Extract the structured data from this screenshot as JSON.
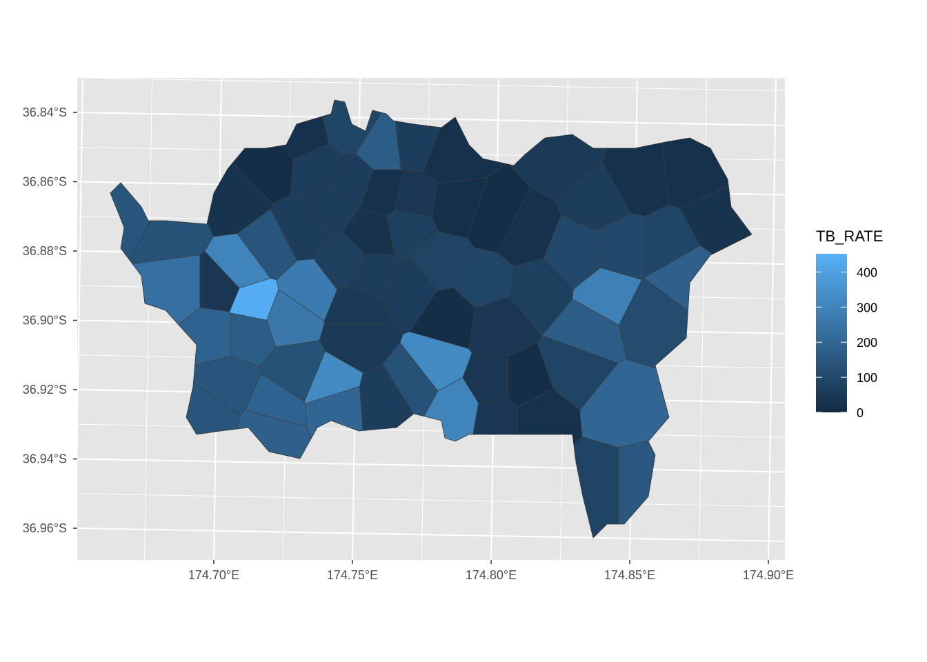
{
  "chart_data": {
    "type": "choropleth-map",
    "title": "",
    "xlabel": "",
    "ylabel": "",
    "x_ticks": [
      {
        "value": 174.7,
        "label": "174.70°E"
      },
      {
        "value": 174.75,
        "label": "174.75°E"
      },
      {
        "value": 174.8,
        "label": "174.80°E"
      },
      {
        "value": 174.85,
        "label": "174.85°E"
      },
      {
        "value": 174.9,
        "label": "174.90°E"
      }
    ],
    "y_ticks": [
      {
        "value": 36.84,
        "label": "36.84°S"
      },
      {
        "value": 36.86,
        "label": "36.86°S"
      },
      {
        "value": 36.88,
        "label": "36.88°S"
      },
      {
        "value": 36.9,
        "label": "36.90°S"
      },
      {
        "value": 36.92,
        "label": "36.92°S"
      },
      {
        "value": 36.94,
        "label": "36.94°S"
      },
      {
        "value": 36.96,
        "label": "36.96°S"
      }
    ],
    "grid": true,
    "panel_background": "#E5E5E5",
    "legend": {
      "title": "TB_RATE",
      "position": "right",
      "breaks": [
        {
          "value": 400,
          "label": "400"
        },
        {
          "value": 300,
          "label": "300"
        },
        {
          "value": 200,
          "label": "200"
        },
        {
          "value": 100,
          "label": "100"
        },
        {
          "value": 0,
          "label": "0"
        }
      ],
      "range": [
        0,
        452
      ],
      "low_color": "#132B43",
      "high_color": "#56B1F7"
    },
    "regions": [
      {
        "lon": 174.732,
        "lat": 36.847,
        "value": 20
      },
      {
        "lon": 174.749,
        "lat": 36.844,
        "value": 90
      },
      {
        "lon": 174.761,
        "lat": 36.85,
        "value": 170
      },
      {
        "lon": 174.772,
        "lat": 36.849,
        "value": 60
      },
      {
        "lon": 174.785,
        "lat": 36.853,
        "value": 20
      },
      {
        "lon": 174.72,
        "lat": 36.855,
        "value": 10
      },
      {
        "lon": 174.707,
        "lat": 36.865,
        "value": 30
      },
      {
        "lon": 174.737,
        "lat": 36.856,
        "value": 60
      },
      {
        "lon": 174.75,
        "lat": 36.86,
        "value": 60
      },
      {
        "lon": 174.761,
        "lat": 36.863,
        "value": 20
      },
      {
        "lon": 174.772,
        "lat": 36.865,
        "value": 40
      },
      {
        "lon": 174.787,
        "lat": 36.867,
        "value": 15
      },
      {
        "lon": 174.802,
        "lat": 36.871,
        "value": 10
      },
      {
        "lon": 174.812,
        "lat": 36.875,
        "value": 20
      },
      {
        "lon": 174.827,
        "lat": 36.853,
        "value": 50
      },
      {
        "lon": 174.839,
        "lat": 36.865,
        "value": 60
      },
      {
        "lon": 174.852,
        "lat": 36.859,
        "value": 20
      },
      {
        "lon": 174.874,
        "lat": 36.857,
        "value": 20
      },
      {
        "lon": 174.882,
        "lat": 36.871,
        "value": 30
      },
      {
        "lon": 174.864,
        "lat": 36.879,
        "value": 90
      },
      {
        "lon": 174.869,
        "lat": 36.886,
        "value": 180
      },
      {
        "lon": 174.847,
        "lat": 36.879,
        "value": 100
      },
      {
        "lon": 174.83,
        "lat": 36.881,
        "value": 100
      },
      {
        "lon": 174.857,
        "lat": 36.899,
        "value": 110
      },
      {
        "lon": 174.842,
        "lat": 36.893,
        "value": 290
      },
      {
        "lon": 174.835,
        "lat": 36.903,
        "value": 170
      },
      {
        "lon": 174.83,
        "lat": 36.914,
        "value": 80
      },
      {
        "lon": 174.847,
        "lat": 36.925,
        "value": 200
      },
      {
        "lon": 174.853,
        "lat": 36.947,
        "value": 150
      },
      {
        "lon": 174.839,
        "lat": 36.947,
        "value": 80
      },
      {
        "lon": 174.812,
        "lat": 36.919,
        "value": 10
      },
      {
        "lon": 174.8,
        "lat": 36.919,
        "value": 40
      },
      {
        "lon": 174.788,
        "lat": 36.925,
        "value": 300
      },
      {
        "lon": 174.78,
        "lat": 36.913,
        "value": 320
      },
      {
        "lon": 174.785,
        "lat": 36.899,
        "value": 10
      },
      {
        "lon": 174.802,
        "lat": 36.901,
        "value": 40
      },
      {
        "lon": 174.817,
        "lat": 36.891,
        "value": 70
      },
      {
        "lon": 174.797,
        "lat": 36.889,
        "value": 90
      },
      {
        "lon": 174.782,
        "lat": 36.883,
        "value": 80
      },
      {
        "lon": 174.77,
        "lat": 36.891,
        "value": 60
      },
      {
        "lon": 174.757,
        "lat": 36.887,
        "value": 60
      },
      {
        "lon": 174.752,
        "lat": 36.897,
        "value": 50
      },
      {
        "lon": 174.747,
        "lat": 36.883,
        "value": 70
      },
      {
        "lon": 174.734,
        "lat": 36.891,
        "value": 270
      },
      {
        "lon": 174.727,
        "lat": 36.899,
        "value": 260
      },
      {
        "lon": 174.742,
        "lat": 36.919,
        "value": 320
      },
      {
        "lon": 174.752,
        "lat": 36.905,
        "value": 50
      },
      {
        "lon": 174.732,
        "lat": 36.874,
        "value": 60
      },
      {
        "lon": 174.72,
        "lat": 36.879,
        "value": 140
      },
      {
        "lon": 174.71,
        "lat": 36.885,
        "value": 300
      },
      {
        "lon": 174.714,
        "lat": 36.895,
        "value": 440
      },
      {
        "lon": 174.702,
        "lat": 36.891,
        "value": 40
      },
      {
        "lon": 174.688,
        "lat": 36.891,
        "value": 230
      },
      {
        "lon": 174.7,
        "lat": 36.903,
        "value": 190
      },
      {
        "lon": 174.705,
        "lat": 36.919,
        "value": 140
      },
      {
        "lon": 174.698,
        "lat": 36.927,
        "value": 140
      },
      {
        "lon": 174.722,
        "lat": 36.925,
        "value": 190
      },
      {
        "lon": 174.72,
        "lat": 36.931,
        "value": 180
      },
      {
        "lon": 174.73,
        "lat": 36.915,
        "value": 130
      },
      {
        "lon": 174.744,
        "lat": 36.924,
        "value": 200
      },
      {
        "lon": 174.762,
        "lat": 36.923,
        "value": 60
      },
      {
        "lon": 174.772,
        "lat": 36.918,
        "value": 130
      },
      {
        "lon": 174.802,
        "lat": 36.927,
        "value": 40
      },
      {
        "lon": 174.817,
        "lat": 36.927,
        "value": 20
      },
      {
        "lon": 174.685,
        "lat": 36.873,
        "value": 130
      },
      {
        "lon": 174.671,
        "lat": 36.867,
        "value": 140
      },
      {
        "lon": 174.712,
        "lat": 36.903,
        "value": 170
      },
      {
        "lon": 174.77,
        "lat": 36.873,
        "value": 70
      },
      {
        "lon": 174.757,
        "lat": 36.875,
        "value": 30
      },
      {
        "lon": 174.742,
        "lat": 36.867,
        "value": 60
      }
    ]
  }
}
